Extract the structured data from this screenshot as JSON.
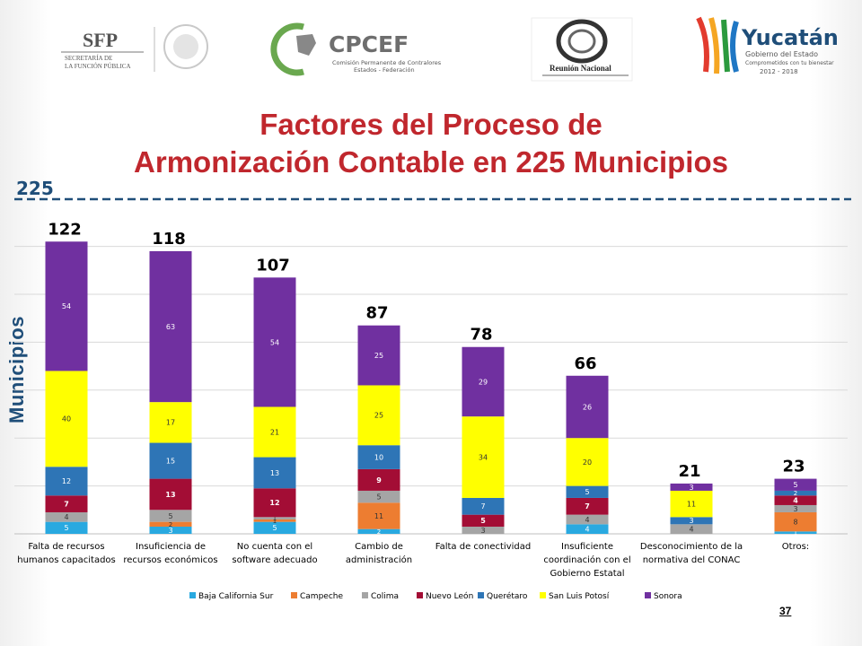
{
  "page": {
    "number": "37"
  },
  "logos": {
    "sfp": {
      "main": "SFP",
      "line1": "SECRETARÍA DE",
      "line2": "LA FUNCIÓN PÚBLICA"
    },
    "cpcef": {
      "main": "CPCEF",
      "line1": "Comisión Permanente de Contralores",
      "line2": "Estados - Federación"
    },
    "reunion": {
      "main": "Reunión Nacional"
    },
    "yucatan": {
      "main": "Yucatán",
      "line1": "Gobierno del Estado",
      "line2": "Comprometidos con tu bienestar",
      "line3": "2012 - 2018"
    }
  },
  "colors": {
    "title": "#c0272d",
    "ref_line": "#1f4e79",
    "series": [
      "#29a9e0",
      "#ed7d31",
      "#a5a5a5",
      "#a30d35",
      "#2e75b6",
      "#ffff00",
      "#7030a0"
    ]
  },
  "chart_data": {
    "type": "bar",
    "stacked": true,
    "title": "Factores del Proceso de Armonización Contable en 225 Municipios",
    "title_lines": [
      "Factores del Proceso de",
      "Armonización Contable en 225 Municipios"
    ],
    "ylabel": "Municipios",
    "reference_line": {
      "value": 225,
      "label": "225"
    },
    "ylim": [
      0,
      135
    ],
    "grid": true,
    "legend": "bottom",
    "categories": [
      [
        "Falta de recursos",
        "humanos capacitados"
      ],
      [
        "Insuficiencia  de",
        "recursos  económicos"
      ],
      [
        "No cuenta con el",
        "software adecuado"
      ],
      [
        "Cambio de",
        "administración"
      ],
      [
        "Falta de conectividad"
      ],
      [
        "Insuficiente",
        "coordinación con el",
        "Gobierno Estatal"
      ],
      [
        "Desconocimiento de la",
        "normativa del CONAC"
      ],
      [
        "Otros:"
      ]
    ],
    "totals": [
      122,
      118,
      107,
      87,
      78,
      66,
      21,
      23
    ],
    "series": [
      {
        "name": "Baja California Sur",
        "values": [
          5,
          3,
          5,
          2,
          0,
          4,
          0,
          1
        ]
      },
      {
        "name": "Campeche",
        "values": [
          0,
          2,
          1,
          11,
          0,
          0,
          0,
          8
        ]
      },
      {
        "name": "Colima",
        "values": [
          4,
          5,
          1,
          5,
          3,
          4,
          4,
          3
        ]
      },
      {
        "name": "Nuevo León",
        "values": [
          7,
          13,
          12,
          9,
          5,
          7,
          0,
          4
        ]
      },
      {
        "name": "Querétaro",
        "values": [
          12,
          15,
          13,
          10,
          7,
          5,
          3,
          2
        ]
      },
      {
        "name": "San Luis Potosí",
        "values": [
          40,
          17,
          21,
          25,
          34,
          20,
          11,
          0
        ]
      },
      {
        "name": "Sonora",
        "values": [
          54,
          63,
          54,
          25,
          29,
          26,
          3,
          5
        ]
      }
    ]
  }
}
